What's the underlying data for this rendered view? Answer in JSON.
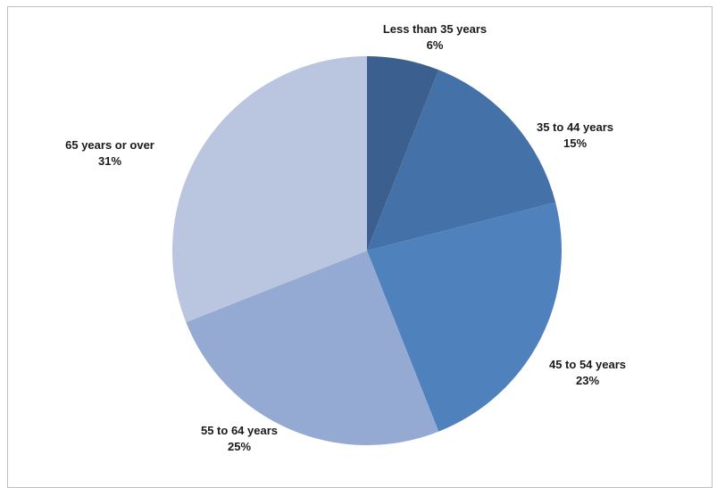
{
  "chart_data": {
    "type": "pie",
    "categories": [
      "Less than 35 years",
      "35 to 44 years",
      "45 to 54 years",
      "55 to 64 years",
      "65 years or over"
    ],
    "values": [
      6,
      15,
      23,
      25,
      31
    ],
    "value_labels": [
      "6%",
      "15%",
      "23%",
      "25%",
      "31%"
    ],
    "colors": [
      "#3b5f8f",
      "#4471a8",
      "#4f81bd",
      "#95aad3",
      "#bac6df"
    ],
    "start_angle_deg": 0,
    "direction": "clockwise",
    "legend": "none"
  }
}
